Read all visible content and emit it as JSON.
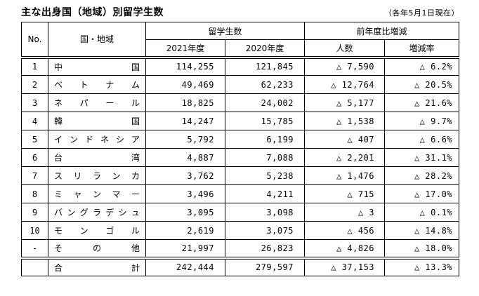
{
  "title": "主な出身国（地域）別留学生数",
  "date_note": "（各年5月1日現在）",
  "table": {
    "headers": {
      "no": "No.",
      "country": "国・地域",
      "students_group": "留学生数",
      "change_group": "前年度比増減",
      "year_2021": "2021年度",
      "year_2020": "2020年度",
      "change_count": "人数",
      "change_rate": "増減率"
    },
    "rows": [
      {
        "no": "1",
        "country": "中国",
        "y2021": "114,255",
        "y2020": "121,845",
        "change": "△ 7,590",
        "rate": "△ 6.2%"
      },
      {
        "no": "2",
        "country": "ベトナム",
        "y2021": "49,469",
        "y2020": "62,233",
        "change": "△ 12,764",
        "rate": "△ 20.5%"
      },
      {
        "no": "3",
        "country": "ネパール",
        "y2021": "18,825",
        "y2020": "24,002",
        "change": "△ 5,177",
        "rate": "△ 21.6%"
      },
      {
        "no": "4",
        "country": "韓国",
        "y2021": "14,247",
        "y2020": "15,785",
        "change": "△ 1,538",
        "rate": "△ 9.7%"
      },
      {
        "no": "5",
        "country": "インドネシア",
        "y2021": "5,792",
        "y2020": "6,199",
        "change": "△ 407",
        "rate": "△ 6.6%"
      },
      {
        "no": "6",
        "country": "台湾",
        "y2021": "4,887",
        "y2020": "7,088",
        "change": "△ 2,201",
        "rate": "△ 31.1%"
      },
      {
        "no": "7",
        "country": "スリランカ",
        "y2021": "3,762",
        "y2020": "5,238",
        "change": "△ 1,476",
        "rate": "△ 28.2%"
      },
      {
        "no": "8",
        "country": "ミャンマー",
        "y2021": "3,496",
        "y2020": "4,211",
        "change": "△ 715",
        "rate": "△ 17.0%"
      },
      {
        "no": "9",
        "country": "バングラデシュ",
        "y2021": "3,095",
        "y2020": "3,098",
        "change": "△ 3",
        "rate": "△ 0.1%"
      },
      {
        "no": "10",
        "country": "モンゴル",
        "y2021": "2,619",
        "y2020": "3,075",
        "change": "△ 456",
        "rate": "△ 14.8%"
      },
      {
        "no": "-",
        "country": "その他",
        "y2021": "21,997",
        "y2020": "26,823",
        "change": "△ 4,826",
        "rate": "△ 18.0%"
      }
    ],
    "total": {
      "no": "",
      "country": "合計",
      "y2021": "242,444",
      "y2020": "279,597",
      "change": "△ 37,153",
      "rate": "△ 13.3%"
    }
  }
}
